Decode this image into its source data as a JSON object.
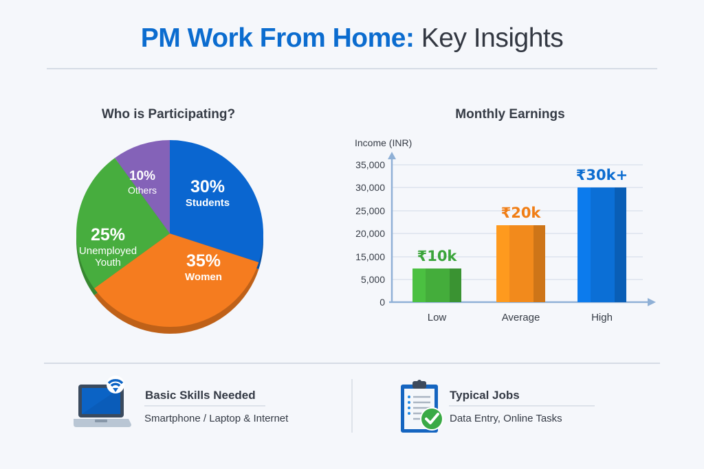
{
  "header": {
    "title_accent": "PM Work From Home:",
    "title_rest": " Key Insights"
  },
  "pie_section": {
    "heading": "Who is Participating?"
  },
  "bar_section": {
    "heading": "Monthly Earnings",
    "y_axis_label": "Income (INR)"
  },
  "footer": {
    "items": [
      {
        "icon": "laptop-wifi-icon",
        "title": "Basic Skills Needed",
        "subtitle": "Smartphone / Laptop & Internet"
      },
      {
        "icon": "clipboard-check-icon",
        "title": "Typical Jobs",
        "subtitle": "Data Entry, Online Tasks"
      }
    ]
  },
  "colors": {
    "accent_blue": "#0b6ccf",
    "students": "#0a66d0",
    "women": "#f57c1f",
    "unemployed_youth": "#47ad3e",
    "others": "#8462b8",
    "bar_low": "#44ad3b",
    "bar_average": "#f28a1c",
    "bar_high": "#0b6fd6"
  },
  "chart_data": [
    {
      "type": "pie",
      "title": "Who is Participating?",
      "categories": [
        "Students",
        "Women",
        "Unemployed Youth",
        "Others"
      ],
      "values": [
        30,
        35,
        25,
        10
      ],
      "labels": [
        "30%",
        "35%",
        "25%",
        "10%"
      ],
      "unit": "%"
    },
    {
      "type": "bar",
      "title": "Monthly Earnings",
      "xlabel": "",
      "ylabel": "Income (INR)",
      "categories": [
        "Low",
        "Average",
        "High"
      ],
      "values": [
        10000,
        20000,
        30000
      ],
      "data_labels": [
        "₹10k",
        "₹20k",
        "₹30k+"
      ],
      "y_ticks": [
        "0",
        "5,000",
        "15,000",
        "20,000",
        "25,000",
        "30,000",
        "35,000"
      ],
      "ylim": [
        0,
        35000
      ],
      "grid": true,
      "legend": "none"
    }
  ]
}
